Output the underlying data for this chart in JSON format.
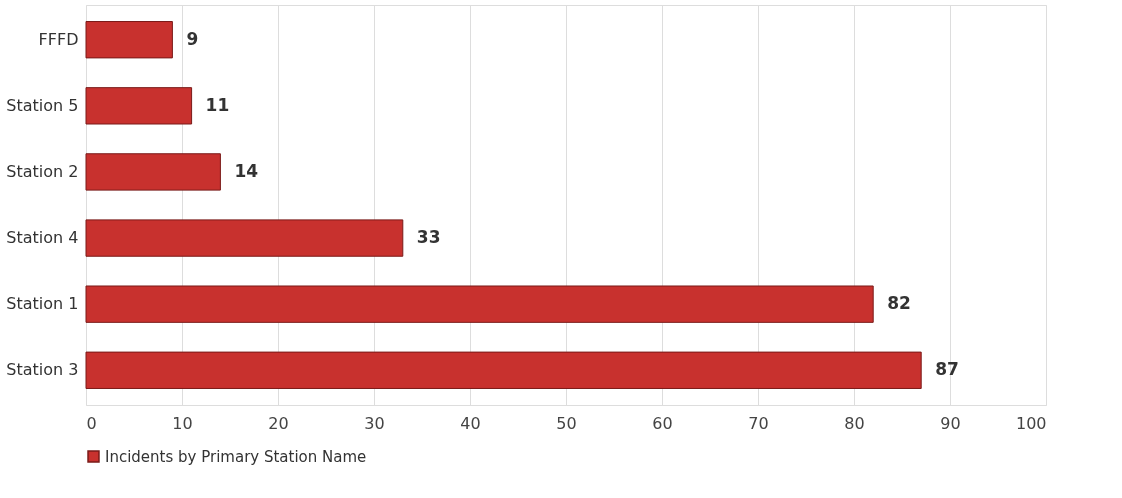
{
  "chart_data": {
    "type": "bar",
    "orientation": "horizontal",
    "categories": [
      "FFFD",
      "Station 5",
      "Station 2",
      "Station 4",
      "Station 1",
      "Station 3"
    ],
    "series": [
      {
        "name": "Incidents by Primary Station Name",
        "color": "#c8312e",
        "values": [
          9,
          11,
          14,
          33,
          82,
          87
        ]
      }
    ],
    "xlim": [
      0,
      100
    ],
    "xticks": [
      0,
      10,
      20,
      30,
      40,
      50,
      60,
      70,
      80,
      90,
      100
    ],
    "grid": "x",
    "legend": "bottom",
    "data_labels": true
  }
}
